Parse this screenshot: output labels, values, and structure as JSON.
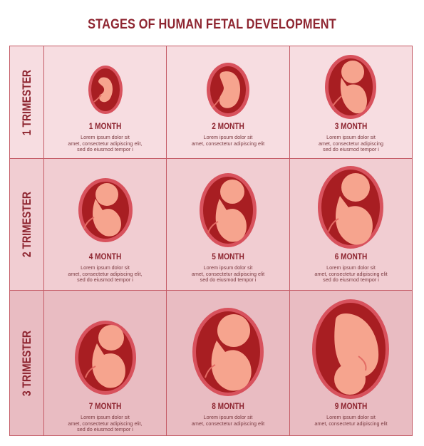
{
  "title": "STAGES OF HUMAN FETAL DEVELOPMENT",
  "colors": {
    "title": "#8e2530",
    "border": "#c45b66",
    "row1_bg": "#f7dde1",
    "row2_bg": "#f1cdd2",
    "row3_bg": "#e9bcc2",
    "uterus_outer": "#d8525d",
    "uterus_inner": "#a81e22",
    "fetus": "#f6a48e"
  },
  "trimesters": [
    {
      "label": "1 TRIMESTER",
      "months": [
        {
          "label": "1 MONTH",
          "text": "Lorem ipsum dolor sit\namet, consectetur adipiscing elit,\nsed do eiusmod tempor i"
        },
        {
          "label": "2 MONTH",
          "text": "Lorem ipsum dolor sit\namet, consectetur adipiscing elit"
        },
        {
          "label": "3 MONTH",
          "text": "Lorem ipsum dolor sit\namet, consectetur adipiscing\nsed do eiusmod tempor i"
        }
      ]
    },
    {
      "label": "2 TRIMESTER",
      "months": [
        {
          "label": "4 MONTH",
          "text": "Lorem ipsum dolor sit\namet, consectetur adipiscing elit,\nsed do eiusmod tempor i"
        },
        {
          "label": "5 MONTH",
          "text": "Lorem ipsum dolor sit\namet, consectetur adipiscing elit\nsed do eiusmod tempor i"
        },
        {
          "label": "6 MONTH",
          "text": "Lorem ipsum dolor sit\namet, consectetur adipiscing elit\nsed do eiusmod tempor i"
        }
      ]
    },
    {
      "label": "3 TRIMESTER",
      "months": [
        {
          "label": "7 MONTH",
          "text": "Lorem ipsum dolor sit\namet, consectetur adipiscing elit,\nsed do eiusmod tempor i"
        },
        {
          "label": "8 MONTH",
          "text": "Lorem ipsum dolor sit\namet, consectetur adipiscing elit"
        },
        {
          "label": "9 MONTH",
          "text": "Lorem ipsum dolor sit\namet, consectetur adipiscing elit"
        }
      ]
    }
  ]
}
